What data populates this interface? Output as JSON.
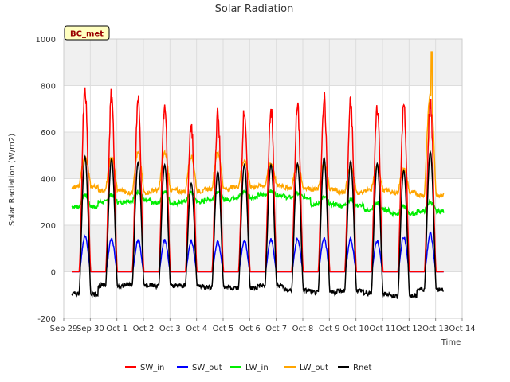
{
  "chart_data": {
    "type": "line",
    "title": "Solar Radiation",
    "xlabel": "Time",
    "ylabel": "Solar Radiation (W/m2)",
    "site_label": "BC_met",
    "ylim": [
      -200,
      1000
    ],
    "yticks": [
      -200,
      0,
      200,
      400,
      600,
      800,
      1000
    ],
    "xlim": [
      0,
      15
    ],
    "x_tick_positions": [
      0,
      1,
      2,
      3,
      4,
      5,
      6,
      7,
      8,
      9,
      10,
      11,
      12,
      13,
      14,
      15
    ],
    "x_tick_labels": [
      "Sep 29",
      "Sep 30",
      "Oct 1",
      "Oct 2",
      "Oct 3",
      "Oct 4",
      "Oct 5",
      "Oct 6",
      "Oct 7",
      "Oct 8",
      "Oct 9",
      "Oct 10",
      "Oct 11",
      "Oct 12",
      "Oct 13",
      "Oct 14"
    ],
    "grid": true,
    "legend_position": "bottom",
    "day_start": 0.3,
    "day_count": 14,
    "daily_peaks": {
      "SW_in": [
        815,
        795,
        775,
        755,
        660,
        710,
        730,
        735,
        745,
        790,
        760,
        750,
        745,
        760
      ],
      "SW_out": [
        160,
        150,
        145,
        145,
        140,
        135,
        140,
        145,
        150,
        155,
        145,
        140,
        160,
        170
      ],
      "LW_in": [
        330,
        330,
        345,
        345,
        340,
        345,
        345,
        345,
        335,
        320,
        310,
        295,
        280,
        300
      ],
      "LW_out": [
        490,
        490,
        510,
        510,
        495,
        510,
        480,
        465,
        460,
        460,
        455,
        450,
        440,
        760
      ],
      "Rnet": [
        495,
        485,
        470,
        460,
        380,
        430,
        460,
        460,
        465,
        490,
        475,
        465,
        435,
        515
      ]
    },
    "night_levels": {
      "SW_in": [
        0,
        0,
        0,
        0,
        0,
        0,
        0,
        0,
        0,
        0,
        0,
        0,
        0,
        0
      ],
      "SW_out": [
        0,
        0,
        0,
        0,
        0,
        0,
        0,
        0,
        0,
        0,
        0,
        0,
        0,
        0
      ],
      "LW_in": [
        280,
        300,
        305,
        295,
        300,
        310,
        320,
        330,
        320,
        290,
        285,
        265,
        250,
        260
      ],
      "LW_out": [
        365,
        350,
        340,
        350,
        345,
        355,
        365,
        370,
        360,
        355,
        340,
        350,
        340,
        330
      ],
      "Rnet": [
        -95,
        -60,
        -55,
        -60,
        -60,
        -65,
        -70,
        -60,
        -80,
        -90,
        -80,
        -95,
        -105,
        -75
      ]
    },
    "series": [
      {
        "name": "SW_in",
        "color": "#ff0000"
      },
      {
        "name": "SW_out",
        "color": "#0000ff"
      },
      {
        "name": "LW_in",
        "color": "#00ee00"
      },
      {
        "name": "LW_out",
        "color": "#ffa500"
      },
      {
        "name": "Rnet",
        "color": "#000000"
      }
    ],
    "spike": {
      "series": "LW_out",
      "x": 13.85,
      "value": 945
    }
  }
}
